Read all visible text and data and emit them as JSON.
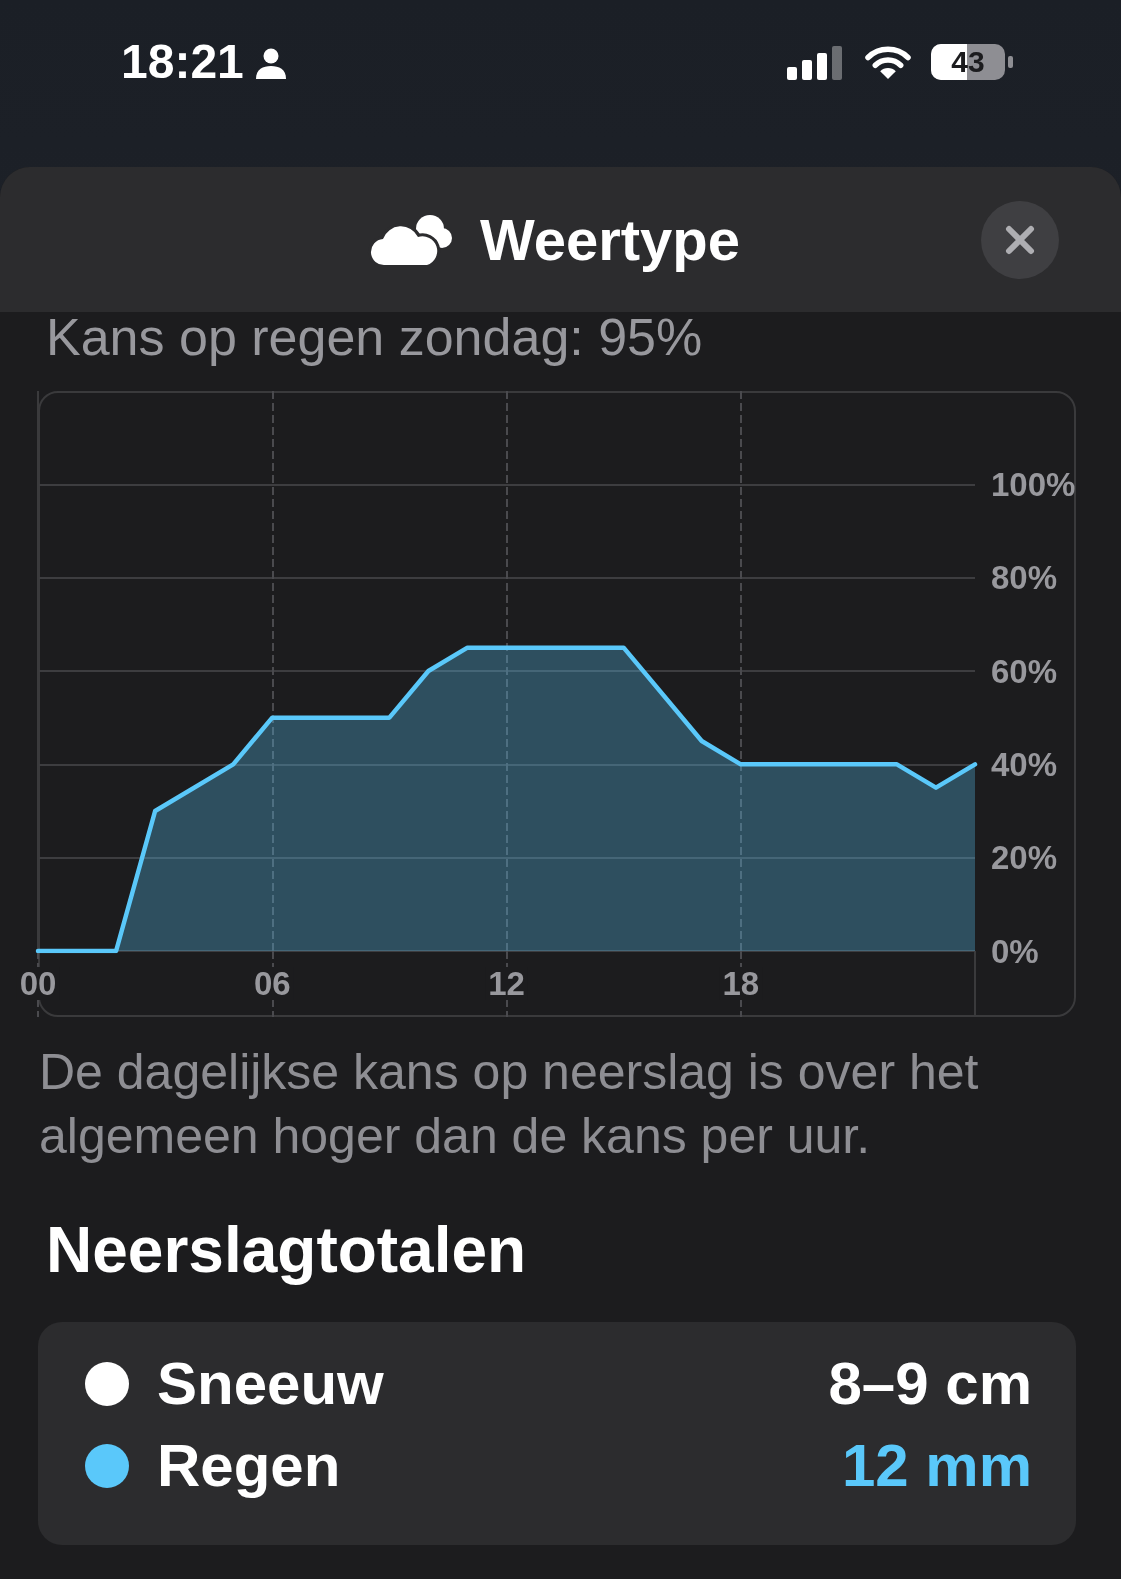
{
  "chart_data": [
    {
      "type": "area",
      "title": "Weertype",
      "subtitle": "Kans op regen zondag: 95%",
      "x": [
        0,
        2,
        3,
        5,
        6,
        9,
        10,
        11,
        15,
        17,
        18,
        22,
        23,
        24
      ],
      "values": [
        0,
        0,
        30,
        40,
        50,
        50,
        60,
        65,
        65,
        45,
        40,
        40,
        35,
        40
      ],
      "color": "#5ac8fa",
      "xlim": [
        0,
        24
      ],
      "xticks": [
        {
          "value": 0,
          "label": "00"
        },
        {
          "value": 6,
          "label": "06"
        },
        12,
        18
      ],
      "ylim": [
        0,
        120
      ],
      "yticks": [
        {
          "value": 0,
          "label": "0%"
        },
        {
          "value": 20,
          "label": "20%"
        },
        {
          "value": 40,
          "label": "40%"
        },
        {
          "value": 60,
          "label": "60%"
        },
        {
          "value": 80,
          "label": "80%"
        },
        {
          "value": 100,
          "label": "100%"
        }
      ],
      "grid": true,
      "annotations": [
        "18:21",
        "43",
        "De dagelijkse kans op neerslag is over het algemeen hoger dan de kans per uur."
      ]
    },
    {
      "type": "other",
      "title": "Neerslagtotalen",
      "categories": [
        "Sneeuw",
        "Regen"
      ],
      "value_labels": [
        "8–9 cm",
        "12 mm"
      ],
      "colors": [
        "#ffffff",
        "#5ac8fa"
      ]
    }
  ]
}
